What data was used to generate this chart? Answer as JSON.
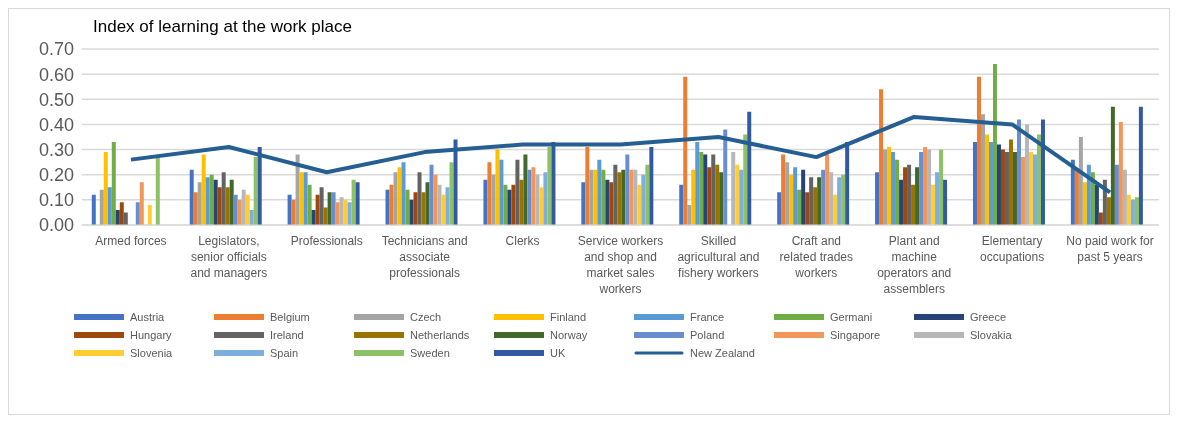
{
  "chart_data": {
    "type": "bar",
    "title": "Index of learning at the work place",
    "categories": [
      "Armed forces",
      "Legislators, senior officials and managers",
      "Professionals",
      "Technicians and associate professionals",
      "Clerks",
      "Service workers and shop and market sales workers",
      "Skilled agricultural and fishery workers",
      "Craft and related trades workers",
      "Plant and machine operators and assemblers",
      "Elementary occupations",
      "No paid work for past 5 years"
    ],
    "ylim": [
      0,
      0.7
    ],
    "yticks": [
      {
        "value": 0,
        "label": "0.00"
      },
      {
        "value": 0.1,
        "label": "0.10"
      },
      {
        "value": 0.2,
        "label": "0.20"
      },
      {
        "value": 0.3,
        "label": "0.30"
      },
      {
        "value": 0.4,
        "label": "0.40"
      },
      {
        "value": 0.5,
        "label": "0.50"
      },
      {
        "value": 0.6,
        "label": "0.60"
      },
      {
        "value": 0.7,
        "label": "0.70"
      }
    ],
    "grid": "y",
    "legend": "bottom",
    "series": [
      {
        "name": "Austria",
        "color": "#4472c4",
        "values": [
          0.12,
          0.22,
          0.12,
          0.14,
          0.18,
          0.17,
          0.16,
          0.13,
          0.21,
          0.33,
          0.26
        ]
      },
      {
        "name": "Belgium",
        "color": "#ed7d31",
        "values": [
          null,
          0.13,
          0.1,
          0.16,
          0.25,
          0.31,
          0.59,
          0.28,
          0.54,
          0.59,
          0.22
        ]
      },
      {
        "name": "Czech",
        "color": "#a5a5a5",
        "values": [
          0.14,
          0.17,
          0.28,
          0.21,
          0.2,
          0.22,
          0.08,
          0.25,
          0.3,
          0.44,
          0.35
        ]
      },
      {
        "name": "Finland",
        "color": "#ffc000",
        "values": [
          0.29,
          0.28,
          0.21,
          0.23,
          0.3,
          0.22,
          0.22,
          0.2,
          0.31,
          0.36,
          0.17
        ]
      },
      {
        "name": "France",
        "color": "#5b9bd5",
        "values": [
          0.15,
          0.19,
          0.21,
          0.25,
          0.26,
          0.26,
          0.33,
          0.23,
          0.29,
          0.33,
          0.24
        ]
      },
      {
        "name": "Germani",
        "color": "#70ad47",
        "values": [
          0.33,
          0.2,
          0.16,
          0.14,
          0.16,
          0.22,
          0.29,
          0.14,
          0.26,
          0.64,
          0.21
        ]
      },
      {
        "name": "Greece",
        "color": "#264478",
        "values": [
          0.06,
          0.18,
          0.06,
          0.1,
          0.14,
          0.18,
          0.28,
          0.22,
          0.18,
          0.32,
          0.16
        ]
      },
      {
        "name": "Hungary",
        "color": "#9e480e",
        "values": [
          0.09,
          0.15,
          0.12,
          0.13,
          0.16,
          0.17,
          0.23,
          0.13,
          0.23,
          0.3,
          0.05
        ]
      },
      {
        "name": "Ireland",
        "color": "#636363",
        "values": [
          0.05,
          0.21,
          0.15,
          0.21,
          0.26,
          0.24,
          0.28,
          0.19,
          0.24,
          0.29,
          0.18
        ]
      },
      {
        "name": "Netherlands",
        "color": "#997300",
        "values": [
          null,
          0.15,
          0.07,
          0.13,
          0.18,
          0.21,
          0.24,
          0.15,
          0.16,
          0.34,
          0.11
        ]
      },
      {
        "name": "Norway",
        "color": "#43682b",
        "values": [
          null,
          0.18,
          0.13,
          0.17,
          0.28,
          0.22,
          0.21,
          0.19,
          0.23,
          0.29,
          0.47
        ]
      },
      {
        "name": "Poland",
        "color": "#698ed0",
        "values": [
          0.09,
          0.12,
          0.13,
          0.24,
          0.22,
          0.28,
          0.38,
          0.22,
          0.29,
          0.42,
          0.24
        ]
      },
      {
        "name": "Singapore",
        "color": "#f1975a",
        "values": [
          0.17,
          0.1,
          0.09,
          0.2,
          0.23,
          0.22,
          null,
          0.28,
          0.31,
          0.27,
          0.41
        ]
      },
      {
        "name": "Slovakia",
        "color": "#b7b7b7",
        "values": [
          null,
          0.14,
          0.11,
          0.16,
          0.2,
          0.22,
          0.29,
          0.21,
          0.3,
          0.4,
          0.22
        ]
      },
      {
        "name": "Slovenia",
        "color": "#ffcd33",
        "values": [
          0.08,
          0.12,
          0.1,
          0.12,
          0.15,
          0.16,
          0.24,
          0.12,
          0.16,
          0.29,
          0.12
        ]
      },
      {
        "name": "Spain",
        "color": "#7cafdd",
        "values": [
          null,
          0.06,
          0.09,
          0.15,
          0.21,
          0.2,
          0.22,
          0.19,
          0.21,
          0.28,
          0.1
        ]
      },
      {
        "name": "Sweden",
        "color": "#8cc168",
        "values": [
          0.27,
          0.27,
          0.18,
          0.25,
          0.31,
          0.24,
          0.36,
          0.2,
          0.3,
          0.36,
          0.11
        ]
      },
      {
        "name": "UK",
        "color": "#335aa1",
        "values": [
          null,
          0.31,
          0.17,
          0.34,
          0.33,
          0.31,
          0.45,
          0.33,
          0.18,
          0.42,
          0.47
        ]
      },
      {
        "name": "New Zealand",
        "type": "line",
        "color": "#255e91",
        "values": [
          0.26,
          0.31,
          0.21,
          0.29,
          0.32,
          0.32,
          0.35,
          0.27,
          0.43,
          0.4,
          0.13
        ]
      }
    ]
  }
}
